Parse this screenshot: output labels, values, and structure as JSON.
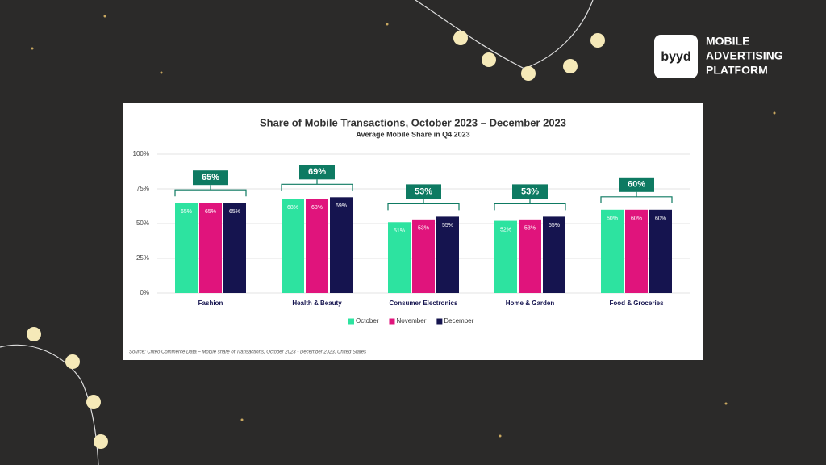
{
  "brand": {
    "logo": "byyd",
    "lines": [
      "MOBILE",
      "ADVERTISING",
      "PLATFORM"
    ]
  },
  "chart_data": {
    "type": "bar",
    "title": "Share of Mobile Transactions,  October 2023 – December 2023",
    "subtitle": "Average Mobile Share in Q4 2023",
    "categories": [
      "Fashion",
      "Health & Beauty",
      "Consumer Electronics",
      "Home & Garden",
      "Food & Groceries"
    ],
    "series": [
      {
        "name": "October",
        "color": "#2de3a0",
        "values": [
          65,
          68,
          51,
          52,
          60
        ],
        "value_labels": [
          "65%",
          "68%",
          "51%",
          "52%",
          "60%"
        ]
      },
      {
        "name": "November",
        "color": "#e0147c",
        "values": [
          65,
          68,
          53,
          53,
          60
        ],
        "value_labels": [
          "65%",
          "68%",
          "53%",
          "53%",
          "60%"
        ]
      },
      {
        "name": "December",
        "color": "#15144f",
        "values": [
          65,
          69,
          55,
          55,
          60
        ],
        "value_labels": [
          "65%",
          "69%",
          "55%",
          "55%",
          "60%"
        ]
      }
    ],
    "averages": [
      65,
      69,
      53,
      53,
      60
    ],
    "average_labels": [
      "65%",
      "69%",
      "53%",
      "53%",
      "60%"
    ],
    "average_color": "#0e7a62",
    "ylim": [
      0,
      100
    ],
    "yticks": [
      {
        "value": 0,
        "label": "0%"
      },
      {
        "value": 25,
        "label": "25%"
      },
      {
        "value": 50,
        "label": "50%"
      },
      {
        "value": 75,
        "label": "75%"
      },
      {
        "value": 100,
        "label": "100%"
      }
    ],
    "grid": true,
    "legend": "bottom",
    "source": "Source: Criteo Commerce Data  –  Mobile share of Transactions, October 2023 - December 2023, United States"
  }
}
